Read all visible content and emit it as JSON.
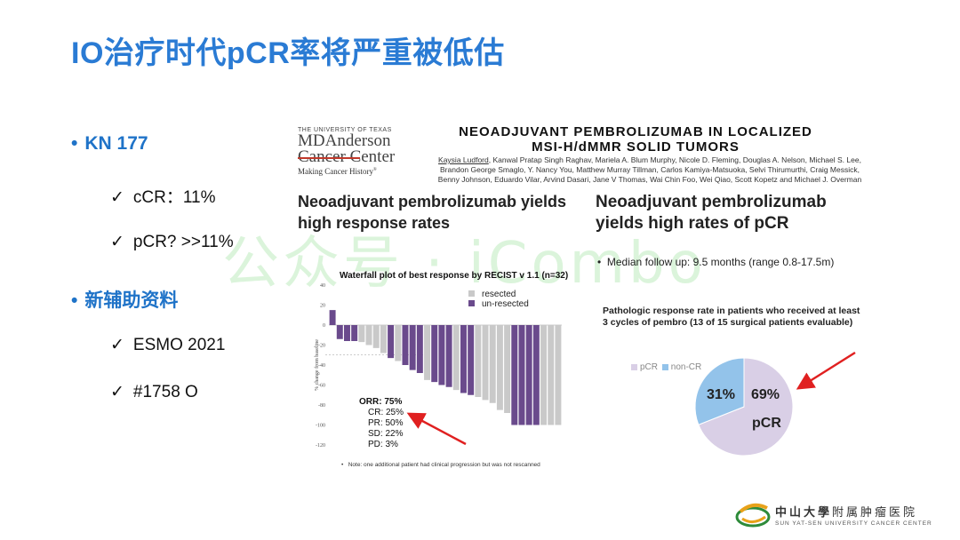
{
  "slide": {
    "title": "IO治疗时代pCR率将严重被低估",
    "watermark": "公众号 · iCombo"
  },
  "bullets": [
    {
      "label": "KN 177",
      "items": [
        "cCR：11%",
        "pCR? >>11%"
      ]
    },
    {
      "label": "新辅助资料",
      "items": [
        "ESMO 2021",
        "#1758 O"
      ]
    }
  ],
  "institution": {
    "line1": "THE UNIVERSITY OF TEXAS",
    "line2": "MDAnderson",
    "line3_cancer": "Cancer",
    "line3_center": " Center",
    "tagline": "Making Cancer History",
    "tagline_mark": "®"
  },
  "paper": {
    "title_line1": "NEOADJUVANT PEMBROLIZUMAB IN LOCALIZED",
    "title_line2": "MSI-H/dMMR SOLID TUMORS",
    "first_author": "Kaysia Ludford",
    "authors_rest": ", Kanwal Pratap Singh Raghav, Mariela A. Blum Murphy, Nicole D. Fleming, Douglas A. Nelson, Michael S. Lee, Brandon George Smaglo, Y. Nancy You, Matthew Murray Tillman, Carlos Kamiya-Matsuoka, Selvi Thirumurthi, Craig Messick, Benny Johnson, Eduardo Vilar, Arvind Dasari, Jane V Thomas, Wai Chin Foo, Wei Qiao, Scott Kopetz and Michael J. Overman"
  },
  "left_panel": {
    "heading_line1": "Neoadjuvant pembrolizumab yields",
    "heading_line2": "high response rates",
    "waterfall_title": "Waterfall plot of best response by RECIST v 1.1 (n=32)",
    "orr": [
      "ORR:  75%",
      "CR: 25%",
      "PR: 50%",
      "SD: 22%",
      "PD: 3%"
    ],
    "note": "Note: one additional patient had clinical progression but was not  rescanned",
    "note_bullet": "•"
  },
  "right_panel": {
    "heading_line1": "Neoadjuvant pembrolizumab",
    "heading_line2": "yields high rates of pCR",
    "followup": "Median follow up: 9.5 months (range 0.8-17.5m)",
    "followup_bullet": "•",
    "pie_title_line1": "Pathologic response rate in patients who received at least",
    "pie_title_line2": "3 cycles of pembro (13 of 15 surgical patients evaluable)"
  },
  "chart_data": [
    {
      "type": "bar",
      "title": "Waterfall plot of best response by RECIST v 1.1 (n=32)",
      "ylabel": "% change from baseline",
      "ylim": [
        -120,
        40
      ],
      "yticks": [
        40,
        20,
        0,
        -20,
        -40,
        -60,
        -80,
        -100,
        -120
      ],
      "reference_line": -30,
      "legend": [
        {
          "name": "resected",
          "color": "#c9c9c9"
        },
        {
          "name": "un-resected",
          "color": "#6a4a8c"
        }
      ],
      "values": [
        15,
        -14,
        -16,
        -16,
        -17,
        -20,
        -23,
        -28,
        -33,
        -36,
        -40,
        -45,
        -48,
        -55,
        -57,
        -60,
        -62,
        -65,
        -68,
        -70,
        -72,
        -75,
        -78,
        -85,
        -88,
        -100,
        -100,
        -100,
        -100,
        -100,
        -100,
        -100
      ],
      "series_by_bar": [
        "u",
        "u",
        "u",
        "u",
        "r",
        "r",
        "r",
        "r",
        "u",
        "r",
        "u",
        "u",
        "u",
        "r",
        "u",
        "u",
        "u",
        "r",
        "u",
        "u",
        "r",
        "r",
        "r",
        "r",
        "r",
        "u",
        "u",
        "u",
        "u",
        "r",
        "r",
        "r"
      ]
    },
    {
      "type": "pie",
      "legend": [
        "pCR",
        "non-CR"
      ],
      "slices": [
        {
          "name": "pCR",
          "value": 69,
          "label": "69%",
          "color": "#d9cfe6"
        },
        {
          "name": "non-CR",
          "value": 31,
          "label": "31%",
          "color": "#93c3ea"
        }
      ],
      "annotation": "pCR"
    }
  ],
  "colors": {
    "title": "#2a7bd4",
    "bullet": "#1f73c8",
    "arrow": "#e02020",
    "resected": "#c9c9c9",
    "unresected": "#6a4a8c"
  },
  "logo": {
    "name_cn_bold": "中山大學",
    "name_cn": "附属肿瘤医院",
    "name_en": "SUN YAT-SEN UNIVERSITY CANCER CENTER"
  }
}
